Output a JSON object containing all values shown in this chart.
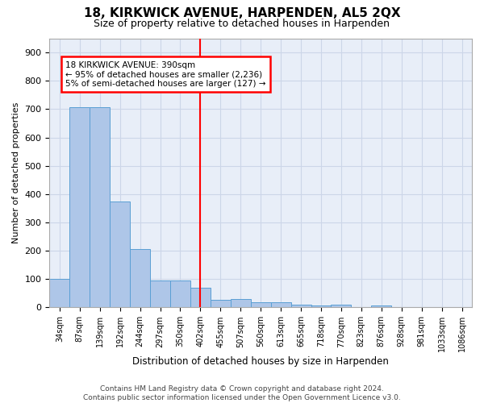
{
  "title": "18, KIRKWICK AVENUE, HARPENDEN, AL5 2QX",
  "subtitle": "Size of property relative to detached houses in Harpenden",
  "xlabel": "Distribution of detached houses by size in Harpenden",
  "ylabel": "Number of detached properties",
  "categories": [
    "34sqm",
    "87sqm",
    "139sqm",
    "192sqm",
    "244sqm",
    "297sqm",
    "350sqm",
    "402sqm",
    "455sqm",
    "507sqm",
    "560sqm",
    "613sqm",
    "665sqm",
    "718sqm",
    "770sqm",
    "823sqm",
    "876sqm",
    "928sqm",
    "981sqm",
    "1033sqm",
    "1086sqm"
  ],
  "values": [
    100,
    708,
    708,
    375,
    207,
    95,
    95,
    70,
    28,
    30,
    18,
    18,
    10,
    8,
    10,
    0,
    8,
    0,
    0,
    0,
    0
  ],
  "bar_color": "#aec6e8",
  "bar_edge_color": "#5a9fd4",
  "vline_x_index": 7,
  "vline_color": "red",
  "annotation_text": "18 KIRKWICK AVENUE: 390sqm\n← 95% of detached houses are smaller (2,236)\n5% of semi-detached houses are larger (127) →",
  "annotation_box_color": "white",
  "annotation_box_edge": "red",
  "ylim": [
    0,
    950
  ],
  "yticks": [
    0,
    100,
    200,
    300,
    400,
    500,
    600,
    700,
    800,
    900
  ],
  "footer_line1": "Contains HM Land Registry data © Crown copyright and database right 2024.",
  "footer_line2": "Contains public sector information licensed under the Open Government Licence v3.0.",
  "grid_color": "#ccd6e8",
  "background_color": "#e8eef8"
}
